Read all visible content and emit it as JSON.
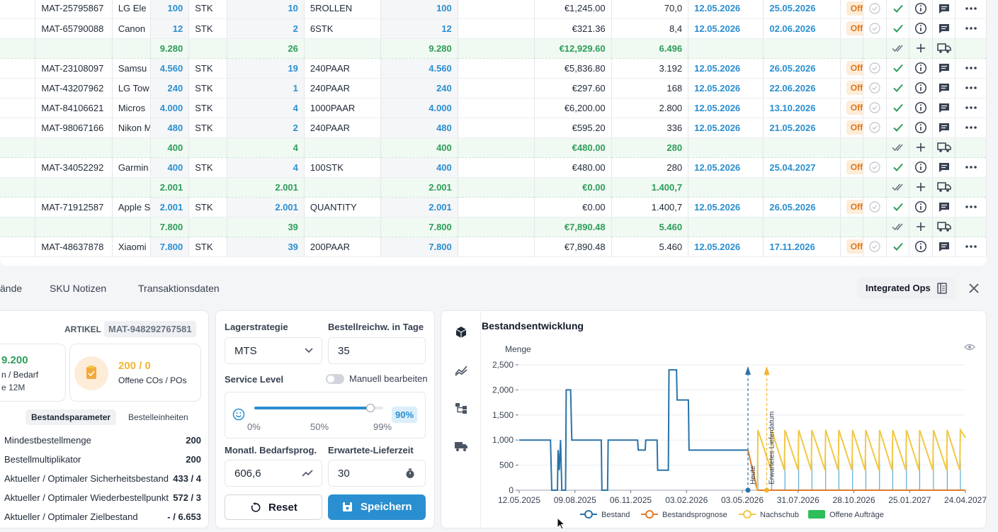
{
  "table": {
    "rows": [
      {
        "type": "item",
        "mat": "MAT-25795867",
        "name": "LG Ele",
        "qty": "100",
        "unit": "STK",
        "pack": "10",
        "packunit": "5ROLLEN",
        "qty2": "100",
        "price": "€1,245.00",
        "d": "70,0",
        "start": "12.05.2026",
        "end": "25.05.2026",
        "status": "Offen"
      },
      {
        "type": "item",
        "mat": "MAT-65790088",
        "name": "Canon",
        "qty": "12",
        "unit": "STK",
        "pack": "2",
        "packunit": "6STK",
        "qty2": "12",
        "price": "€321.36",
        "d": "8,4",
        "start": "12.05.2026",
        "end": "02.06.2026",
        "status": "Offen"
      },
      {
        "type": "group",
        "qty": "9.280",
        "pack": "26",
        "qty2": "9.280",
        "price": "€12,929.60",
        "d": "6.496"
      },
      {
        "type": "item",
        "mat": "MAT-23108097",
        "name": "Samsu",
        "qty": "4.560",
        "unit": "STK",
        "pack": "19",
        "packunit": "240PAAR",
        "qty2": "4.560",
        "price": "€5,836.80",
        "d": "3.192",
        "start": "12.05.2026",
        "end": "26.05.2026",
        "status": "Offen"
      },
      {
        "type": "item",
        "mat": "MAT-43207962",
        "name": "LG Tow",
        "qty": "240",
        "unit": "STK",
        "pack": "1",
        "packunit": "240PAAR",
        "qty2": "240",
        "price": "€297.60",
        "d": "168",
        "start": "12.05.2026",
        "end": "22.06.2026",
        "status": "Offen"
      },
      {
        "type": "item",
        "mat": "MAT-84106621",
        "name": "Micros",
        "qty": "4.000",
        "unit": "STK",
        "pack": "4",
        "packunit": "1000PAAR",
        "qty2": "4.000",
        "price": "€6,200.00",
        "d": "2.800",
        "start": "12.05.2026",
        "end": "13.10.2026",
        "status": "Offen"
      },
      {
        "type": "item",
        "mat": "MAT-98067166",
        "name": "Nikon M",
        "qty": "480",
        "unit": "STK",
        "pack": "2",
        "packunit": "240PAAR",
        "qty2": "480",
        "price": "€595.20",
        "d": "336",
        "start": "12.05.2026",
        "end": "21.05.2026",
        "status": "Offen"
      },
      {
        "type": "group",
        "qty": "400",
        "pack": "4",
        "qty2": "400",
        "price": "€480.00",
        "d": "280"
      },
      {
        "type": "item",
        "mat": "MAT-34052292",
        "name": "Garmin",
        "qty": "400",
        "unit": "STK",
        "pack": "4",
        "packunit": "100STK",
        "qty2": "400",
        "price": "€480.00",
        "d": "280",
        "start": "12.05.2026",
        "end": "25.04.2027",
        "status": "Offen"
      },
      {
        "type": "group",
        "qty": "2.001",
        "pack": "2.001",
        "qty2": "2.001",
        "price": "€0.00",
        "d": "1.400,7"
      },
      {
        "type": "item",
        "mat": "MAT-71912587",
        "name": "Apple S",
        "qty": "2.001",
        "unit": "STK",
        "pack": "2.001",
        "packunit": "QUANTITY",
        "qty2": "2.001",
        "price": "€0.00",
        "d": "1.400,7",
        "start": "12.05.2026",
        "end": "26.05.2026",
        "status": "Offen"
      },
      {
        "type": "group",
        "qty": "7.800",
        "pack": "39",
        "qty2": "7.800",
        "price": "€7,890.48",
        "d": "5.460"
      },
      {
        "type": "item",
        "mat": "MAT-48637878",
        "name": "Xiaomi",
        "qty": "7.800",
        "unit": "STK",
        "pack": "39",
        "packunit": "200PAAR",
        "qty2": "7.800",
        "price": "€7,890.48",
        "d": "5.460",
        "start": "12.05.2026",
        "end": "17.11.2026",
        "status": "Offen"
      }
    ]
  },
  "tabs": [
    "ände",
    "SKU Notizen",
    "Transaktionsdaten"
  ],
  "integrated_ops": "Integrated Ops",
  "left_card": {
    "artikel_label": "ARTIKEL",
    "artikel_value": "MAT-948292767581",
    "stat1_value": "9.200",
    "stat1_label": "n / Bedarf",
    "stat1_sub": "e 12M",
    "stat2_value": "200 / 0",
    "stat2_label": "Offene COs / POs",
    "subtab_active": "Bestandsparameter",
    "subtab_other": "Bestelleinheiten",
    "params": [
      {
        "label": "Mindestbestellmenge",
        "value": "200"
      },
      {
        "label": "Bestellmultiplikator",
        "value": "200"
      },
      {
        "label": "Aktueller / Optimaler Sicherheitsbestand",
        "value": "433 / 4"
      },
      {
        "label": "Aktueller / Optimaler Wiederbestellpunkt",
        "value": "572 / 3"
      },
      {
        "label": "Aktueller / Optimaler Zielbestand",
        "value": "- / 6.653"
      }
    ]
  },
  "mid_card": {
    "lagerstrategie_label": "Lagerstrategie",
    "lagerstrategie_value": "MTS",
    "bestellreichw_label": "Bestellreichw. in Tage",
    "bestellreichw_value": "35",
    "service_level_label": "Service Level",
    "manuell_label": "Manuell bearbeiten",
    "slider_ticks": [
      "0%",
      "50%",
      "99%"
    ],
    "slider_value_label": "90%",
    "slider_fraction": 0.9,
    "bedarfsprog_label": "Monatl. Bedarfsprog.",
    "bedarfsprog_value": "606,6",
    "lieferzeit_label": "Erwartete-Lieferzeit",
    "lieferzeit_value": "30",
    "reset_label": "Reset",
    "save_label": "Speichern"
  },
  "chart_card": {
    "title": "Bestandsentwicklung"
  },
  "chart_data": {
    "type": "line",
    "ylabel": "Menge",
    "ylim": [
      0,
      2500
    ],
    "yticks": [
      "0",
      "500",
      "1,000",
      "1,500",
      "2,000",
      "2,500"
    ],
    "xticks": [
      "12.05.2025",
      "09.08.2025",
      "06.11.2025",
      "03.02.2026",
      "03.05.2026",
      "31.07.2026",
      "28.10.2026",
      "25.01.2027",
      "24.04.2027"
    ],
    "markers": [
      "Heute",
      "Erwartetes Lieferdatum"
    ],
    "legend": [
      "Bestand",
      "Bestandsprognose",
      "Nachschub",
      "Offene Aufträge"
    ],
    "series": [
      {
        "name": "Bestand",
        "color": "#2a73a8",
        "points": [
          [
            "12.05.2025",
            1000
          ],
          [
            "01.07.2025",
            1000
          ],
          [
            "03.07.2025",
            0
          ],
          [
            "12.07.2025",
            0
          ],
          [
            "13.07.2025",
            800
          ],
          [
            "15.07.2025",
            400
          ],
          [
            "17.07.2025",
            1000
          ],
          [
            "19.07.2025",
            0
          ],
          [
            "25.07.2025",
            0
          ],
          [
            "26.07.2025",
            2000
          ],
          [
            "02.08.2025",
            2000
          ],
          [
            "04.08.2025",
            1000
          ],
          [
            "20.09.2025",
            1000
          ],
          [
            "21.09.2025",
            0
          ],
          [
            "30.09.2025",
            0
          ],
          [
            "01.10.2025",
            1000
          ],
          [
            "17.11.2025",
            1000
          ],
          [
            "18.11.2025",
            800
          ],
          [
            "29.11.2025",
            800
          ],
          [
            "30.11.2025",
            1000
          ],
          [
            "18.12.2025",
            1000
          ],
          [
            "19.12.2025",
            400
          ],
          [
            "05.01.2026",
            400
          ],
          [
            "06.01.2026",
            2400
          ],
          [
            "18.01.2026",
            2400
          ],
          [
            "19.01.2026",
            1800
          ],
          [
            "06.02.2026",
            1800
          ],
          [
            "07.02.2026",
            800
          ],
          [
            "12.05.2026",
            800
          ]
        ]
      },
      {
        "name": "Bestandsprognose",
        "color": "#e07b2a",
        "points": [
          [
            "12.05.2026",
            800
          ],
          [
            "27.05.2026",
            0
          ],
          [
            "24.04.2027",
            0
          ]
        ]
      },
      {
        "name": "Nachschub",
        "color": "#f2c744",
        "points": [
          [
            "27.05.2026",
            0
          ],
          [
            "28.05.2026",
            1200
          ],
          [
            "18.06.2026",
            400
          ],
          [
            "19.06.2026",
            1200
          ],
          [
            "09.07.2026",
            400
          ],
          [
            "10.07.2026",
            1200
          ],
          [
            "31.07.2026",
            400
          ],
          [
            "01.08.2026",
            1200
          ],
          [
            "21.08.2026",
            400
          ],
          [
            "22.08.2026",
            1200
          ],
          [
            "12.09.2026",
            400
          ],
          [
            "13.09.2026",
            1200
          ],
          [
            "03.10.2026",
            400
          ],
          [
            "04.10.2026",
            1200
          ],
          [
            "25.10.2026",
            400
          ],
          [
            "26.10.2026",
            1200
          ],
          [
            "15.11.2026",
            400
          ],
          [
            "16.11.2026",
            1200
          ],
          [
            "07.12.2026",
            400
          ],
          [
            "08.12.2026",
            1200
          ],
          [
            "28.12.2026",
            400
          ],
          [
            "29.12.2026",
            1200
          ],
          [
            "19.01.2027",
            400
          ],
          [
            "20.01.2027",
            1200
          ],
          [
            "09.02.2027",
            400
          ],
          [
            "10.02.2027",
            1200
          ],
          [
            "03.03.2027",
            400
          ],
          [
            "04.03.2027",
            1200
          ],
          [
            "25.03.2027",
            400
          ],
          [
            "26.03.2027",
            1200
          ],
          [
            "15.04.2027",
            400
          ],
          [
            "16.04.2027",
            1200
          ],
          [
            "24.04.2027",
            1050
          ]
        ]
      }
    ]
  }
}
